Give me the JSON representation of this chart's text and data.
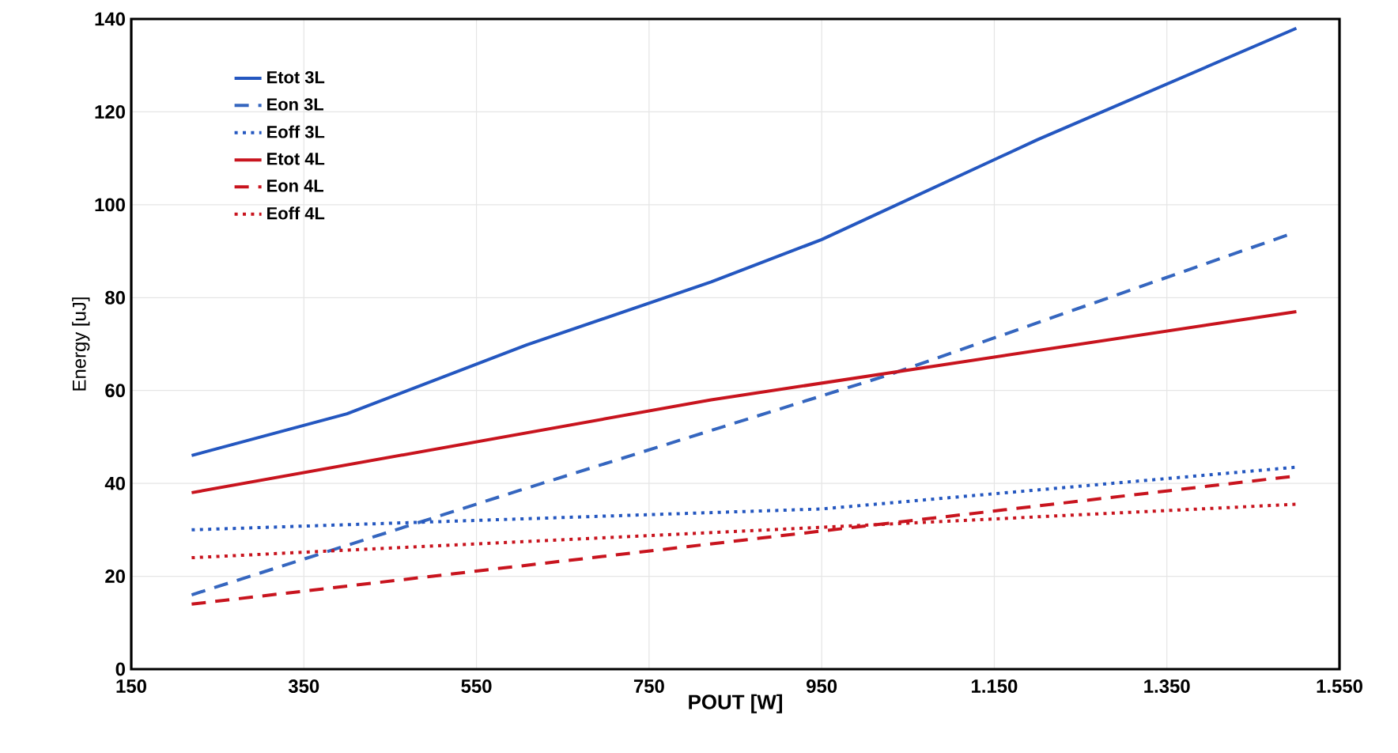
{
  "chart_data": {
    "type": "line",
    "xlabel": "POUT  [W]",
    "ylabel": "Energy [uJ]",
    "xlim": [
      150,
      1550
    ],
    "ylim": [
      0,
      140
    ],
    "xticks": [
      150,
      350,
      550,
      750,
      950,
      {
        "value": 1150,
        "label": "1.150"
      },
      {
        "value": 1350,
        "label": "1.350"
      },
      {
        "value": 1550,
        "label": "1.550"
      }
    ],
    "yticks": [
      0,
      20,
      40,
      60,
      80,
      100,
      120,
      140
    ],
    "grid": true,
    "legend": "top left",
    "marker": "none",
    "series": [
      {
        "name": "Etot 3L",
        "color": "#2457c0",
        "line_style": "solid",
        "x": [
          220,
          400,
          608,
          822,
          950,
          1200,
          1500
        ],
        "values": [
          46,
          55,
          69.8,
          83.4,
          92.5,
          114,
          138
        ]
      },
      {
        "name": "Eon 3L",
        "color": "#3566bf",
        "line_style": "dashed",
        "x": [
          220,
          600,
          1030,
          1490
        ],
        "values": [
          16,
          38.5,
          63.5,
          93.5
        ]
      },
      {
        "name": "Eoff 3L",
        "color": "#2457c0",
        "line_style": "dotted",
        "x": [
          220,
          950,
          1500
        ],
        "values": [
          30,
          34.5,
          43.5
        ]
      },
      {
        "name": "Etot 4L",
        "color": "#c8141e",
        "line_style": "solid",
        "x": [
          220,
          822,
          1500
        ],
        "values": [
          38,
          58,
          77
        ]
      },
      {
        "name": "Eon 4L",
        "color": "#c8141e",
        "line_style": "dashed",
        "x": [
          220,
          1495
        ],
        "values": [
          14,
          41.5
        ]
      },
      {
        "name": "Eoff 4L",
        "color": "#c8141e",
        "line_style": "dotted",
        "x": [
          220,
          1500
        ],
        "values": [
          24,
          35.5
        ]
      }
    ]
  }
}
